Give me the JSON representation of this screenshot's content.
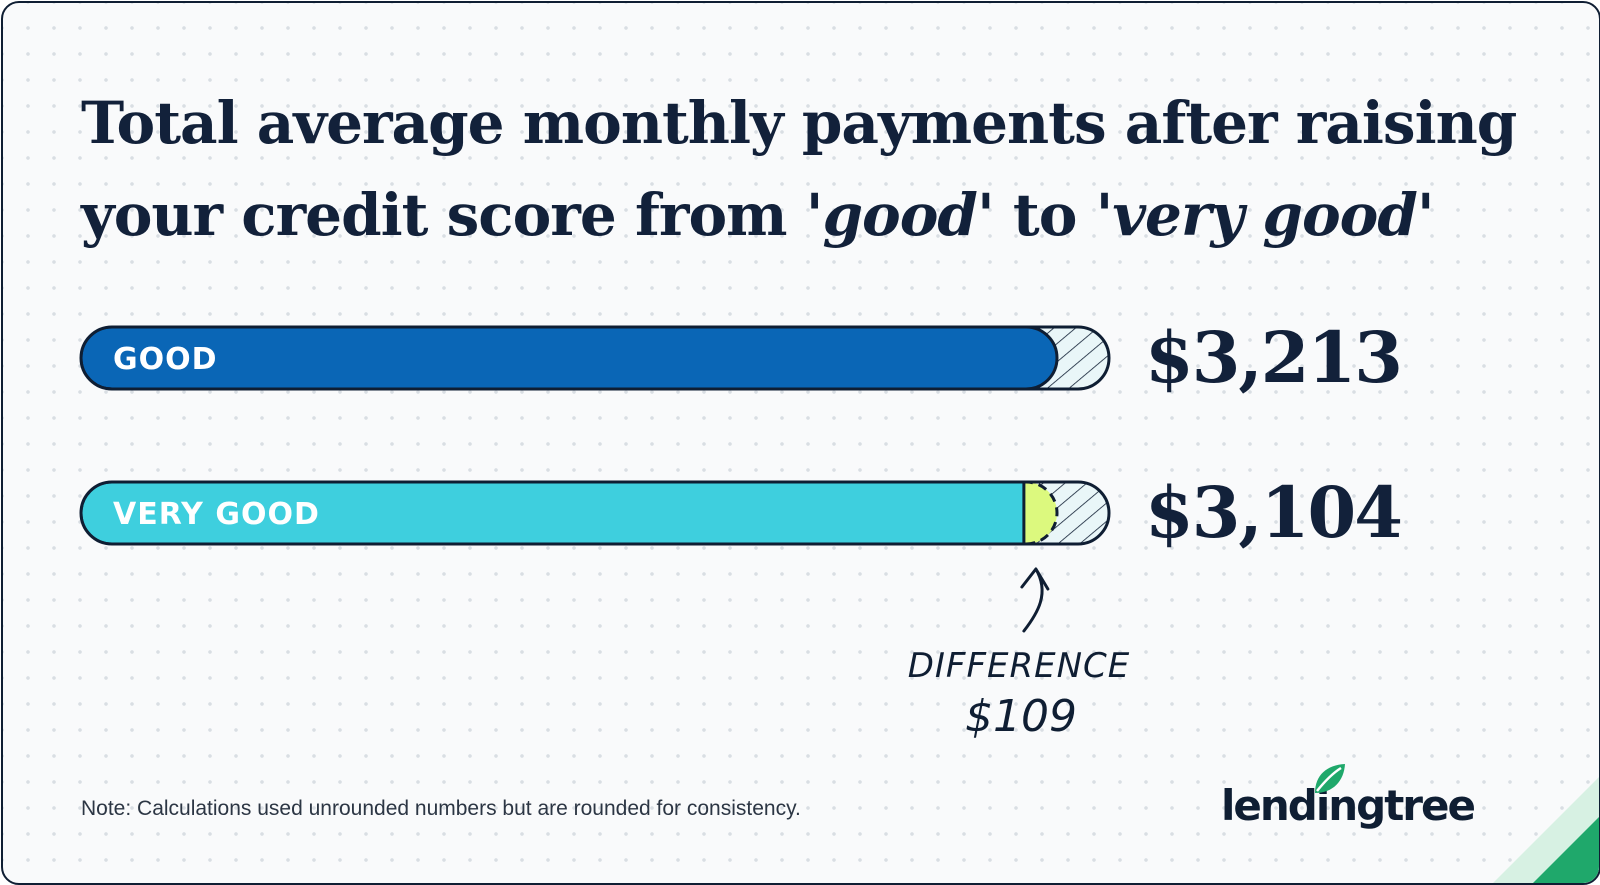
{
  "title": {
    "part1": "Total average monthly payments after raising your credit score from '",
    "good": "good",
    "part2": "' to '",
    "very_good": "very good",
    "part3": "'"
  },
  "chart_data": {
    "type": "bar",
    "orientation": "horizontal",
    "categories": [
      "GOOD",
      "VERY GOOD"
    ],
    "values": [
      3213,
      3104
    ],
    "value_labels": [
      "$3,213",
      "$3,104"
    ],
    "difference": {
      "label": "DIFFERENCE",
      "value": 109,
      "value_label": "$109"
    },
    "colors": {
      "good": "#0a66b6",
      "very_good": "#3ecfde",
      "difference": "#dcf97e",
      "outline": "#0f1e33",
      "hatch_bg": "#e9f6f8"
    }
  },
  "note": "Note: Calculations used unrounded numbers but are rounded for consistency.",
  "brand": {
    "logo_text": "lendingtree",
    "logo_icon": "leaf-icon",
    "accent": "#1fa86b"
  }
}
